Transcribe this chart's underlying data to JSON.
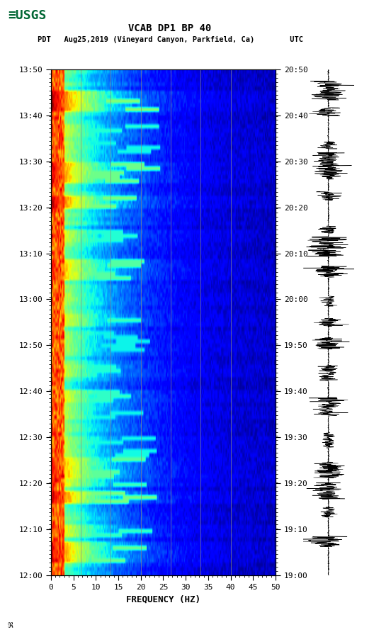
{
  "title_line1": "VCAB DP1 BP 40",
  "title_line2": "PDT   Aug25,2019 (Vineyard Canyon, Parkfield, Ca)        UTC",
  "xlabel": "FREQUENCY (HZ)",
  "freq_min": 0,
  "freq_max": 50,
  "pdt_ticks": [
    "12:00",
    "12:10",
    "12:20",
    "12:30",
    "12:40",
    "12:50",
    "13:00",
    "13:10",
    "13:20",
    "13:30",
    "13:40",
    "13:50"
  ],
  "utc_ticks": [
    "19:00",
    "19:10",
    "19:20",
    "19:30",
    "19:40",
    "19:50",
    "20:00",
    "20:10",
    "20:20",
    "20:30",
    "20:40",
    "20:50"
  ],
  "freq_ticks": [
    0,
    5,
    10,
    15,
    20,
    25,
    30,
    35,
    40,
    45,
    50
  ],
  "vertical_lines_hz": [
    6.7,
    13.3,
    20,
    26.7,
    33.3,
    40
  ],
  "bg_color": "#ffffff",
  "spectrogram_cmap": "jet",
  "fig_width": 5.52,
  "fig_height": 8.92,
  "dpi": 100,
  "num_time_bins": 120,
  "num_freq_bins": 200,
  "event_times": [
    5,
    10,
    18,
    22,
    25,
    30,
    38,
    42,
    48,
    55,
    60,
    65,
    72,
    80,
    88,
    95,
    100,
    105,
    112
  ]
}
